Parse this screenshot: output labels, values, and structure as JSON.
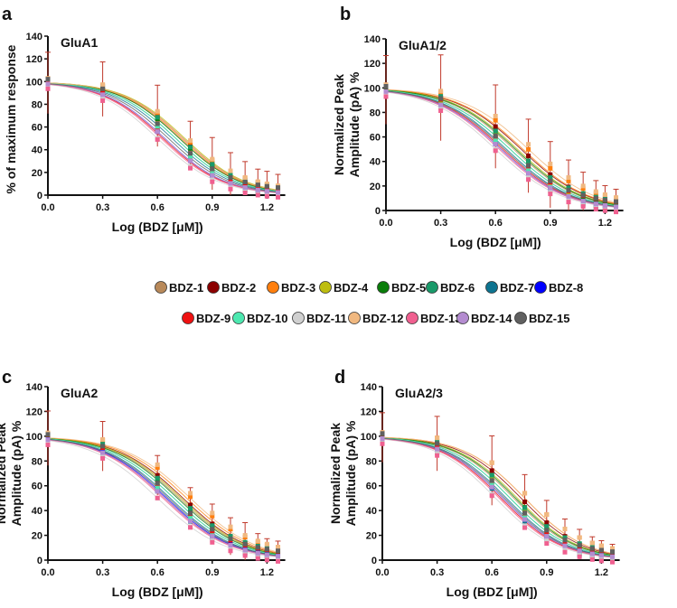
{
  "chart_data": [
    {
      "type": "line",
      "panel_letter": "a",
      "title": "GluA1",
      "xlabel": "Log (BDZ [μM])",
      "ylabel": "% of maximum response",
      "xlim": [
        0,
        1.3
      ],
      "ylim": [
        0,
        140
      ],
      "xticks": [
        "0.0",
        "0.3",
        "0.6",
        "0.9",
        "1.2"
      ],
      "yticks": [
        "0",
        "20",
        "40",
        "60",
        "80",
        "100",
        "120",
        "140"
      ],
      "x": [
        0,
        0.3,
        0.6,
        0.78,
        0.9,
        1.0,
        1.08,
        1.15,
        1.2,
        1.26
      ],
      "hill": 2.6,
      "log_ic50": [
        0.72,
        0.74,
        0.73,
        0.75,
        0.72,
        0.7,
        0.68,
        0.64,
        0.63,
        0.7,
        0.6,
        0.74,
        0.62,
        0.64,
        0.66
      ],
      "error_bars": [
        27,
        24,
        27,
        21,
        23,
        20,
        18,
        15,
        15,
        14
      ]
    },
    {
      "type": "line",
      "panel_letter": "b",
      "title": "GluA1/2",
      "xlabel": "Log (BDZ [μM])",
      "ylabel": "Normalized Peak Amplitude (pA) %",
      "xlim": [
        0,
        1.3
      ],
      "ylim": [
        0,
        140
      ],
      "xticks": [
        "0.0",
        "0.3",
        "0.6",
        "0.9",
        "1.2"
      ],
      "yticks": [
        "0",
        "20",
        "40",
        "60",
        "80",
        "100",
        "120",
        "140"
      ],
      "x": [
        0,
        0.3,
        0.6,
        0.78,
        0.9,
        1.0,
        1.08,
        1.15,
        1.2,
        1.26
      ],
      "hill": 2.4,
      "log_ic50": [
        0.7,
        0.74,
        0.75,
        0.72,
        0.71,
        0.68,
        0.66,
        0.63,
        0.64,
        0.68,
        0.6,
        0.78,
        0.62,
        0.63,
        0.65
      ],
      "error_bars": [
        28,
        35,
        34,
        30,
        27,
        22,
        18,
        15,
        13,
        12
      ]
    },
    {
      "type": "line",
      "panel_letter": "c",
      "title": "GluA2",
      "xlabel": "Log (BDZ [μM])",
      "ylabel": "Normalized Peak Amplitude (pA) %",
      "xlim": [
        0,
        1.3
      ],
      "ylim": [
        0,
        140
      ],
      "xticks": [
        "0.0",
        "0.3",
        "0.6",
        "0.9",
        "1.2"
      ],
      "yticks": [
        "0",
        "20",
        "40",
        "60",
        "80",
        "100",
        "120",
        "140"
      ],
      "x": [
        0,
        0.3,
        0.6,
        0.78,
        0.9,
        1.0,
        1.08,
        1.15,
        1.2,
        1.26
      ],
      "hill": 2.4,
      "log_ic50": [
        0.72,
        0.74,
        0.76,
        0.73,
        0.71,
        0.69,
        0.67,
        0.65,
        0.64,
        0.69,
        0.6,
        0.78,
        0.63,
        0.64,
        0.66
      ],
      "error_bars": [
        22,
        20,
        16,
        14,
        16,
        15,
        17,
        12,
        10,
        10
      ]
    },
    {
      "type": "line",
      "panel_letter": "d",
      "title": "GluA2/3",
      "xlabel": "Log (BDZ [μM])",
      "ylabel": "Normalized Peak Amplitude (pA) %",
      "xlim": [
        0,
        1.3
      ],
      "ylim": [
        0,
        140
      ],
      "xticks": [
        "0.0",
        "0.3",
        "0.6",
        "0.9",
        "1.2"
      ],
      "yticks": [
        "0",
        "20",
        "40",
        "60",
        "80",
        "100",
        "120",
        "140"
      ],
      "x": [
        0,
        0.3,
        0.6,
        0.78,
        0.9,
        1.0,
        1.08,
        1.15,
        1.2,
        1.26
      ],
      "hill": 2.6,
      "log_ic50": [
        0.72,
        0.76,
        0.78,
        0.74,
        0.73,
        0.7,
        0.68,
        0.66,
        0.65,
        0.7,
        0.62,
        0.78,
        0.64,
        0.66,
        0.67
      ],
      "error_bars": [
        20,
        22,
        28,
        22,
        18,
        14,
        12,
        10,
        9,
        8
      ]
    }
  ],
  "legend": [
    {
      "name": "BDZ-1",
      "color": "#b8895a"
    },
    {
      "name": "BDZ-2",
      "color": "#8b0000"
    },
    {
      "name": "BDZ-3",
      "color": "#ff7f0e"
    },
    {
      "name": "BDZ-4",
      "color": "#bdbd10"
    },
    {
      "name": "BDZ-5",
      "color": "#0a7d0a"
    },
    {
      "name": "BDZ-6",
      "color": "#1a9a6a"
    },
    {
      "name": "BDZ-7",
      "color": "#0e7490"
    },
    {
      "name": "BDZ-8",
      "color": "#0000ff"
    },
    {
      "name": "BDZ-9",
      "color": "#ee1111"
    },
    {
      "name": "BDZ-10",
      "color": "#4de8b0"
    },
    {
      "name": "BDZ-11",
      "color": "#d0d0d0"
    },
    {
      "name": "BDZ-12",
      "color": "#f0b880"
    },
    {
      "name": "BDZ-13",
      "color": "#f06090"
    },
    {
      "name": "BDZ-14",
      "color": "#b48cd0"
    },
    {
      "name": "BDZ-15",
      "color": "#606060"
    }
  ]
}
